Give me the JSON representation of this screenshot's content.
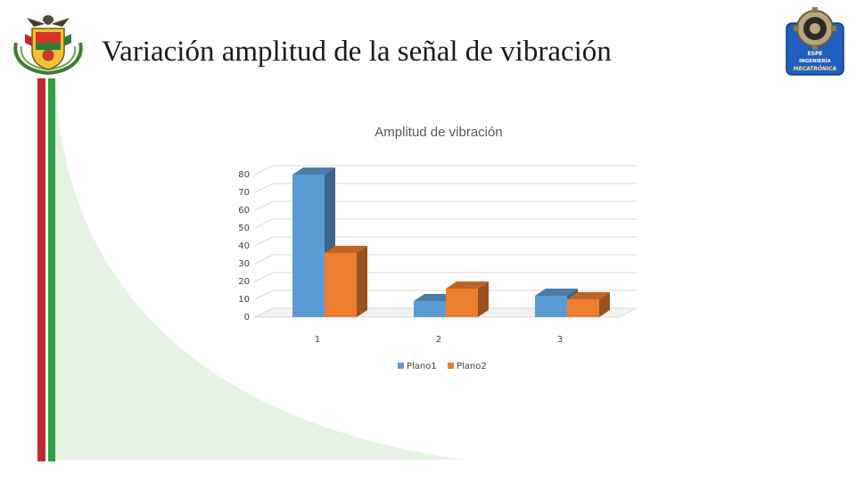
{
  "slide": {
    "title": "Variación amplitud de la señal de vibración",
    "left_logo_icon": "university-coat-of-arms-icon",
    "right_logo_icon": "gear-mechatronics-badge-icon",
    "right_logo_text": [
      "ESPE",
      "INGENIERÍA",
      "MECATRÓNICA"
    ]
  },
  "colors": {
    "stripe_red": "#c1272d",
    "stripe_green": "#2f9e44",
    "wave_green": "#e6f2e3",
    "series1": "#5b9bd5",
    "series2": "#ed7d31"
  },
  "chart_data": {
    "type": "bar",
    "style": "3d-clustered-column",
    "title": "Amplitud de vibración",
    "categories": [
      "1",
      "2",
      "3"
    ],
    "series": [
      {
        "name": "Plano1",
        "values": [
          80,
          9,
          12
        ]
      },
      {
        "name": "Plano2",
        "values": [
          36,
          16,
          10
        ]
      }
    ],
    "ylim": [
      0,
      80
    ],
    "yticks": [
      "0",
      "10",
      "20",
      "30",
      "40",
      "50",
      "60",
      "70",
      "80"
    ],
    "grid": true,
    "legend_position": "bottom"
  }
}
